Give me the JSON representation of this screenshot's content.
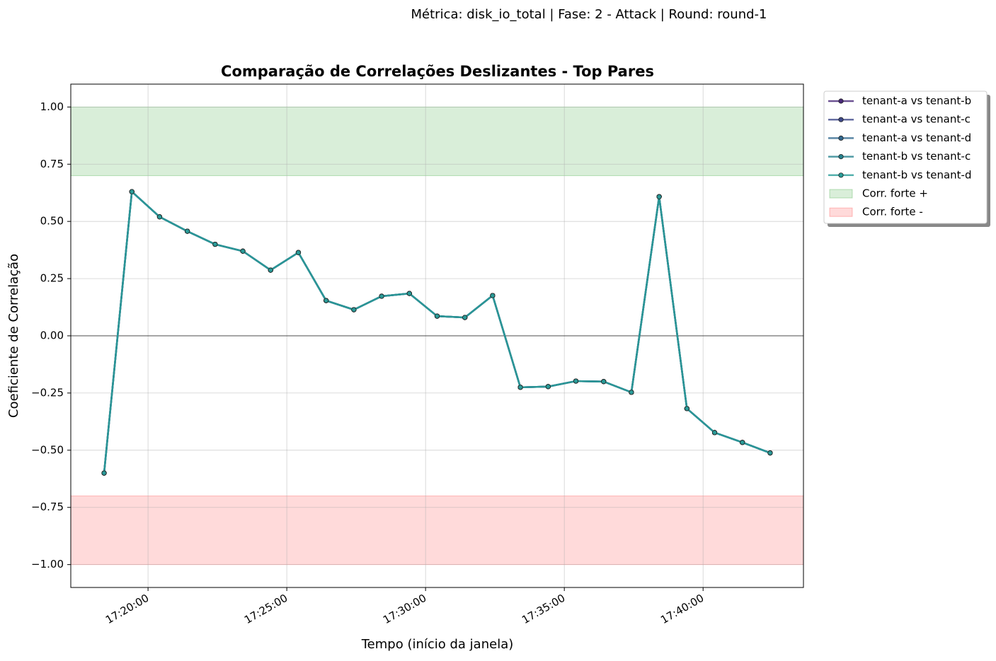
{
  "chart_data": {
    "type": "line",
    "suptitle": "Métrica: disk_io_total | Fase: 2 - Attack | Round: round-1",
    "title": "Comparação de Correlações Deslizantes - Top Pares",
    "xlabel": "Tempo (início da janela)",
    "ylabel": "Coeficiente de Correlação",
    "x": [
      "17:18:25",
      "17:19:25",
      "17:20:25",
      "17:21:25",
      "17:22:25",
      "17:23:25",
      "17:24:25",
      "17:25:25",
      "17:26:25",
      "17:27:25",
      "17:28:25",
      "17:29:25",
      "17:30:25",
      "17:31:25",
      "17:32:25",
      "17:33:25",
      "17:34:25",
      "17:35:25",
      "17:36:25",
      "17:37:25",
      "17:38:25",
      "17:39:25",
      "17:40:25",
      "17:41:25",
      "17:42:25"
    ],
    "series": [
      {
        "name": "tenant-a vs tenant-b",
        "color": "#482878",
        "values": [
          -0.6,
          0.63,
          0.52,
          0.457,
          0.4,
          0.37,
          0.287,
          0.364,
          0.154,
          0.114,
          0.173,
          0.185,
          0.086,
          0.08,
          0.176,
          -0.225,
          -0.222,
          -0.198,
          -0.2,
          -0.247,
          0.608,
          -0.318,
          -0.423,
          -0.466,
          -0.512
        ]
      },
      {
        "name": "tenant-a vs tenant-c",
        "color": "#3e4989",
        "values": [
          -0.6,
          0.63,
          0.52,
          0.457,
          0.4,
          0.37,
          0.287,
          0.364,
          0.154,
          0.114,
          0.173,
          0.185,
          0.086,
          0.08,
          0.176,
          -0.225,
          -0.222,
          -0.198,
          -0.2,
          -0.247,
          0.608,
          -0.318,
          -0.423,
          -0.466,
          -0.512
        ]
      },
      {
        "name": "tenant-a vs tenant-d",
        "color": "#31688e",
        "values": [
          -0.6,
          0.63,
          0.52,
          0.457,
          0.4,
          0.37,
          0.287,
          0.364,
          0.154,
          0.114,
          0.173,
          0.185,
          0.086,
          0.08,
          0.176,
          -0.225,
          -0.222,
          -0.198,
          -0.2,
          -0.247,
          0.608,
          -0.318,
          -0.423,
          -0.466,
          -0.512
        ]
      },
      {
        "name": "tenant-b vs tenant-c",
        "color": "#26828e",
        "values": [
          -0.6,
          0.63,
          0.52,
          0.457,
          0.4,
          0.37,
          0.287,
          0.364,
          0.154,
          0.114,
          0.173,
          0.185,
          0.086,
          0.08,
          0.176,
          -0.225,
          -0.222,
          -0.198,
          -0.2,
          -0.247,
          0.608,
          -0.318,
          -0.423,
          -0.466,
          -0.512
        ]
      },
      {
        "name": "tenant-b vs tenant-d",
        "color": "#2a9d99",
        "values": [
          -0.6,
          0.63,
          0.52,
          0.457,
          0.4,
          0.37,
          0.287,
          0.364,
          0.154,
          0.114,
          0.173,
          0.185,
          0.086,
          0.08,
          0.176,
          -0.225,
          -0.222,
          -0.198,
          -0.2,
          -0.247,
          0.608,
          -0.318,
          -0.423,
          -0.466,
          -0.512
        ]
      }
    ],
    "bands": [
      {
        "name": "Corr. forte +",
        "range": [
          0.7,
          1.0
        ],
        "color": "#2ca02c"
      },
      {
        "name": "Corr. forte -",
        "range": [
          -1.0,
          -0.7
        ],
        "color": "#ff3333"
      }
    ],
    "reference_line": 0,
    "xlim": [
      "17:17:13",
      "17:43:37"
    ],
    "xticks": [
      "17:20:00",
      "17:25:00",
      "17:30:00",
      "17:35:00",
      "17:40:00"
    ],
    "ylim": [
      -1.1,
      1.1
    ],
    "yticks": [
      {
        "value": 1,
        "label": "1.00"
      },
      {
        "value": 0.75,
        "label": "0.75"
      },
      {
        "value": 0.5,
        "label": "0.50"
      },
      {
        "value": 0.25,
        "label": "0.25"
      },
      {
        "value": 0,
        "label": "0.00"
      },
      {
        "value": -0.25,
        "label": "−0.25"
      },
      {
        "value": -0.5,
        "label": "−0.50"
      },
      {
        "value": -0.75,
        "label": "−0.75"
      },
      {
        "value": -1,
        "label": "−1.00"
      }
    ],
    "grid": true,
    "legend": "outside-right"
  }
}
